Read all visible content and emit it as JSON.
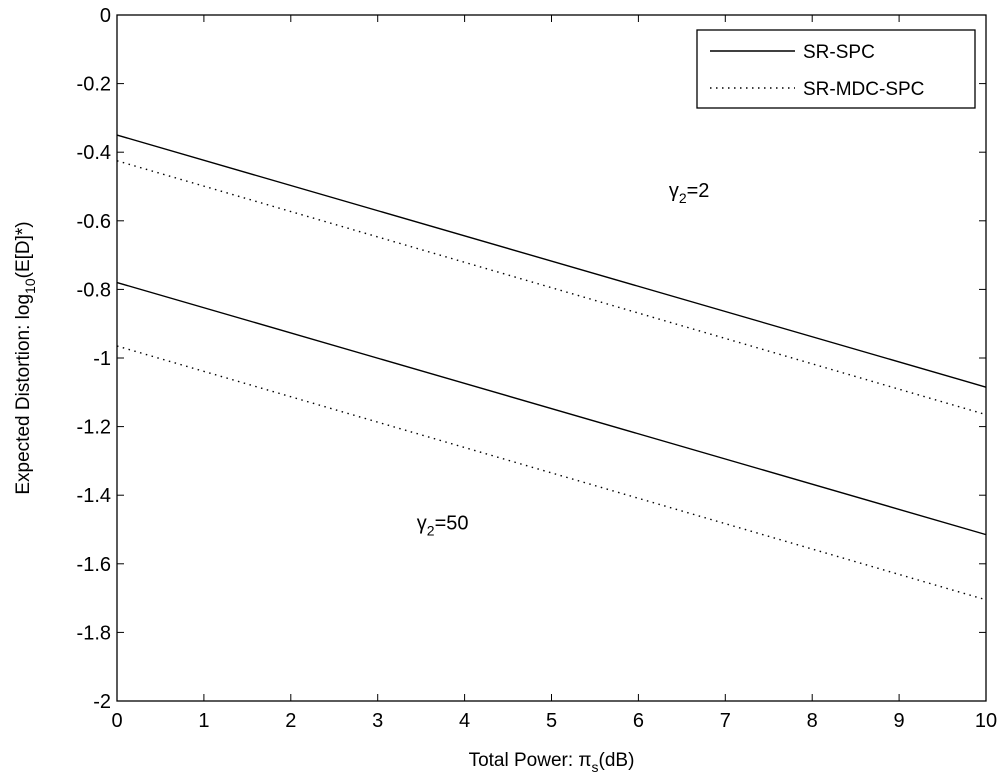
{
  "chart_data": {
    "type": "line",
    "title": "",
    "xlabel": {
      "main": "Total Power: π",
      "sub": "s",
      "tail": "(dB)"
    },
    "ylabel": {
      "main": "Expected Distortion: log",
      "sub": "10",
      "tail": "(E[D]*)"
    },
    "xlim": [
      0,
      10
    ],
    "ylim": [
      -2,
      0
    ],
    "xticks": [
      0,
      1,
      2,
      3,
      4,
      5,
      6,
      7,
      8,
      9,
      10
    ],
    "yticks": [
      0,
      -0.2,
      -0.4,
      -0.6,
      -0.8,
      -1,
      -1.2,
      -1.4,
      -1.6,
      -1.8,
      -2
    ],
    "xtick_labels": [
      "0",
      "1",
      "2",
      "3",
      "4",
      "5",
      "6",
      "7",
      "8",
      "9",
      "10"
    ],
    "ytick_labels": [
      "0",
      "-0.2",
      "-0.4",
      "-0.6",
      "-0.8",
      "-1",
      "-1.2",
      "-1.4",
      "-1.6",
      "-1.8",
      "-2"
    ],
    "grid": false,
    "legend": {
      "position": "top-right",
      "entries": [
        {
          "label": "SR-SPC",
          "style": "solid"
        },
        {
          "label": "SR-MDC-SPC",
          "style": "dotted"
        }
      ]
    },
    "series": [
      {
        "legend": "SR-SPC",
        "group": "γ2=2",
        "style": "solid",
        "color": "#000000",
        "x": [
          0,
          10
        ],
        "y": [
          -0.35,
          -1.085
        ]
      },
      {
        "legend": "SR-MDC-SPC",
        "group": "γ2=2",
        "style": "dotted",
        "color": "#000000",
        "x": [
          0,
          10
        ],
        "y": [
          -0.425,
          -1.165
        ]
      },
      {
        "legend": "SR-SPC",
        "group": "γ2=50",
        "style": "solid",
        "color": "#000000",
        "x": [
          0,
          10
        ],
        "y": [
          -0.78,
          -1.515
        ]
      },
      {
        "legend": "SR-MDC-SPC",
        "group": "γ2=50",
        "style": "dotted",
        "color": "#000000",
        "x": [
          0,
          10
        ],
        "y": [
          -0.965,
          -1.705
        ]
      }
    ],
    "annotations": [
      {
        "main": "γ",
        "sub": "2",
        "tail": "=2",
        "x": 6.35,
        "y": -0.53
      },
      {
        "main": "γ",
        "sub": "2",
        "tail": "=50",
        "x": 3.45,
        "y": -1.5
      }
    ]
  }
}
